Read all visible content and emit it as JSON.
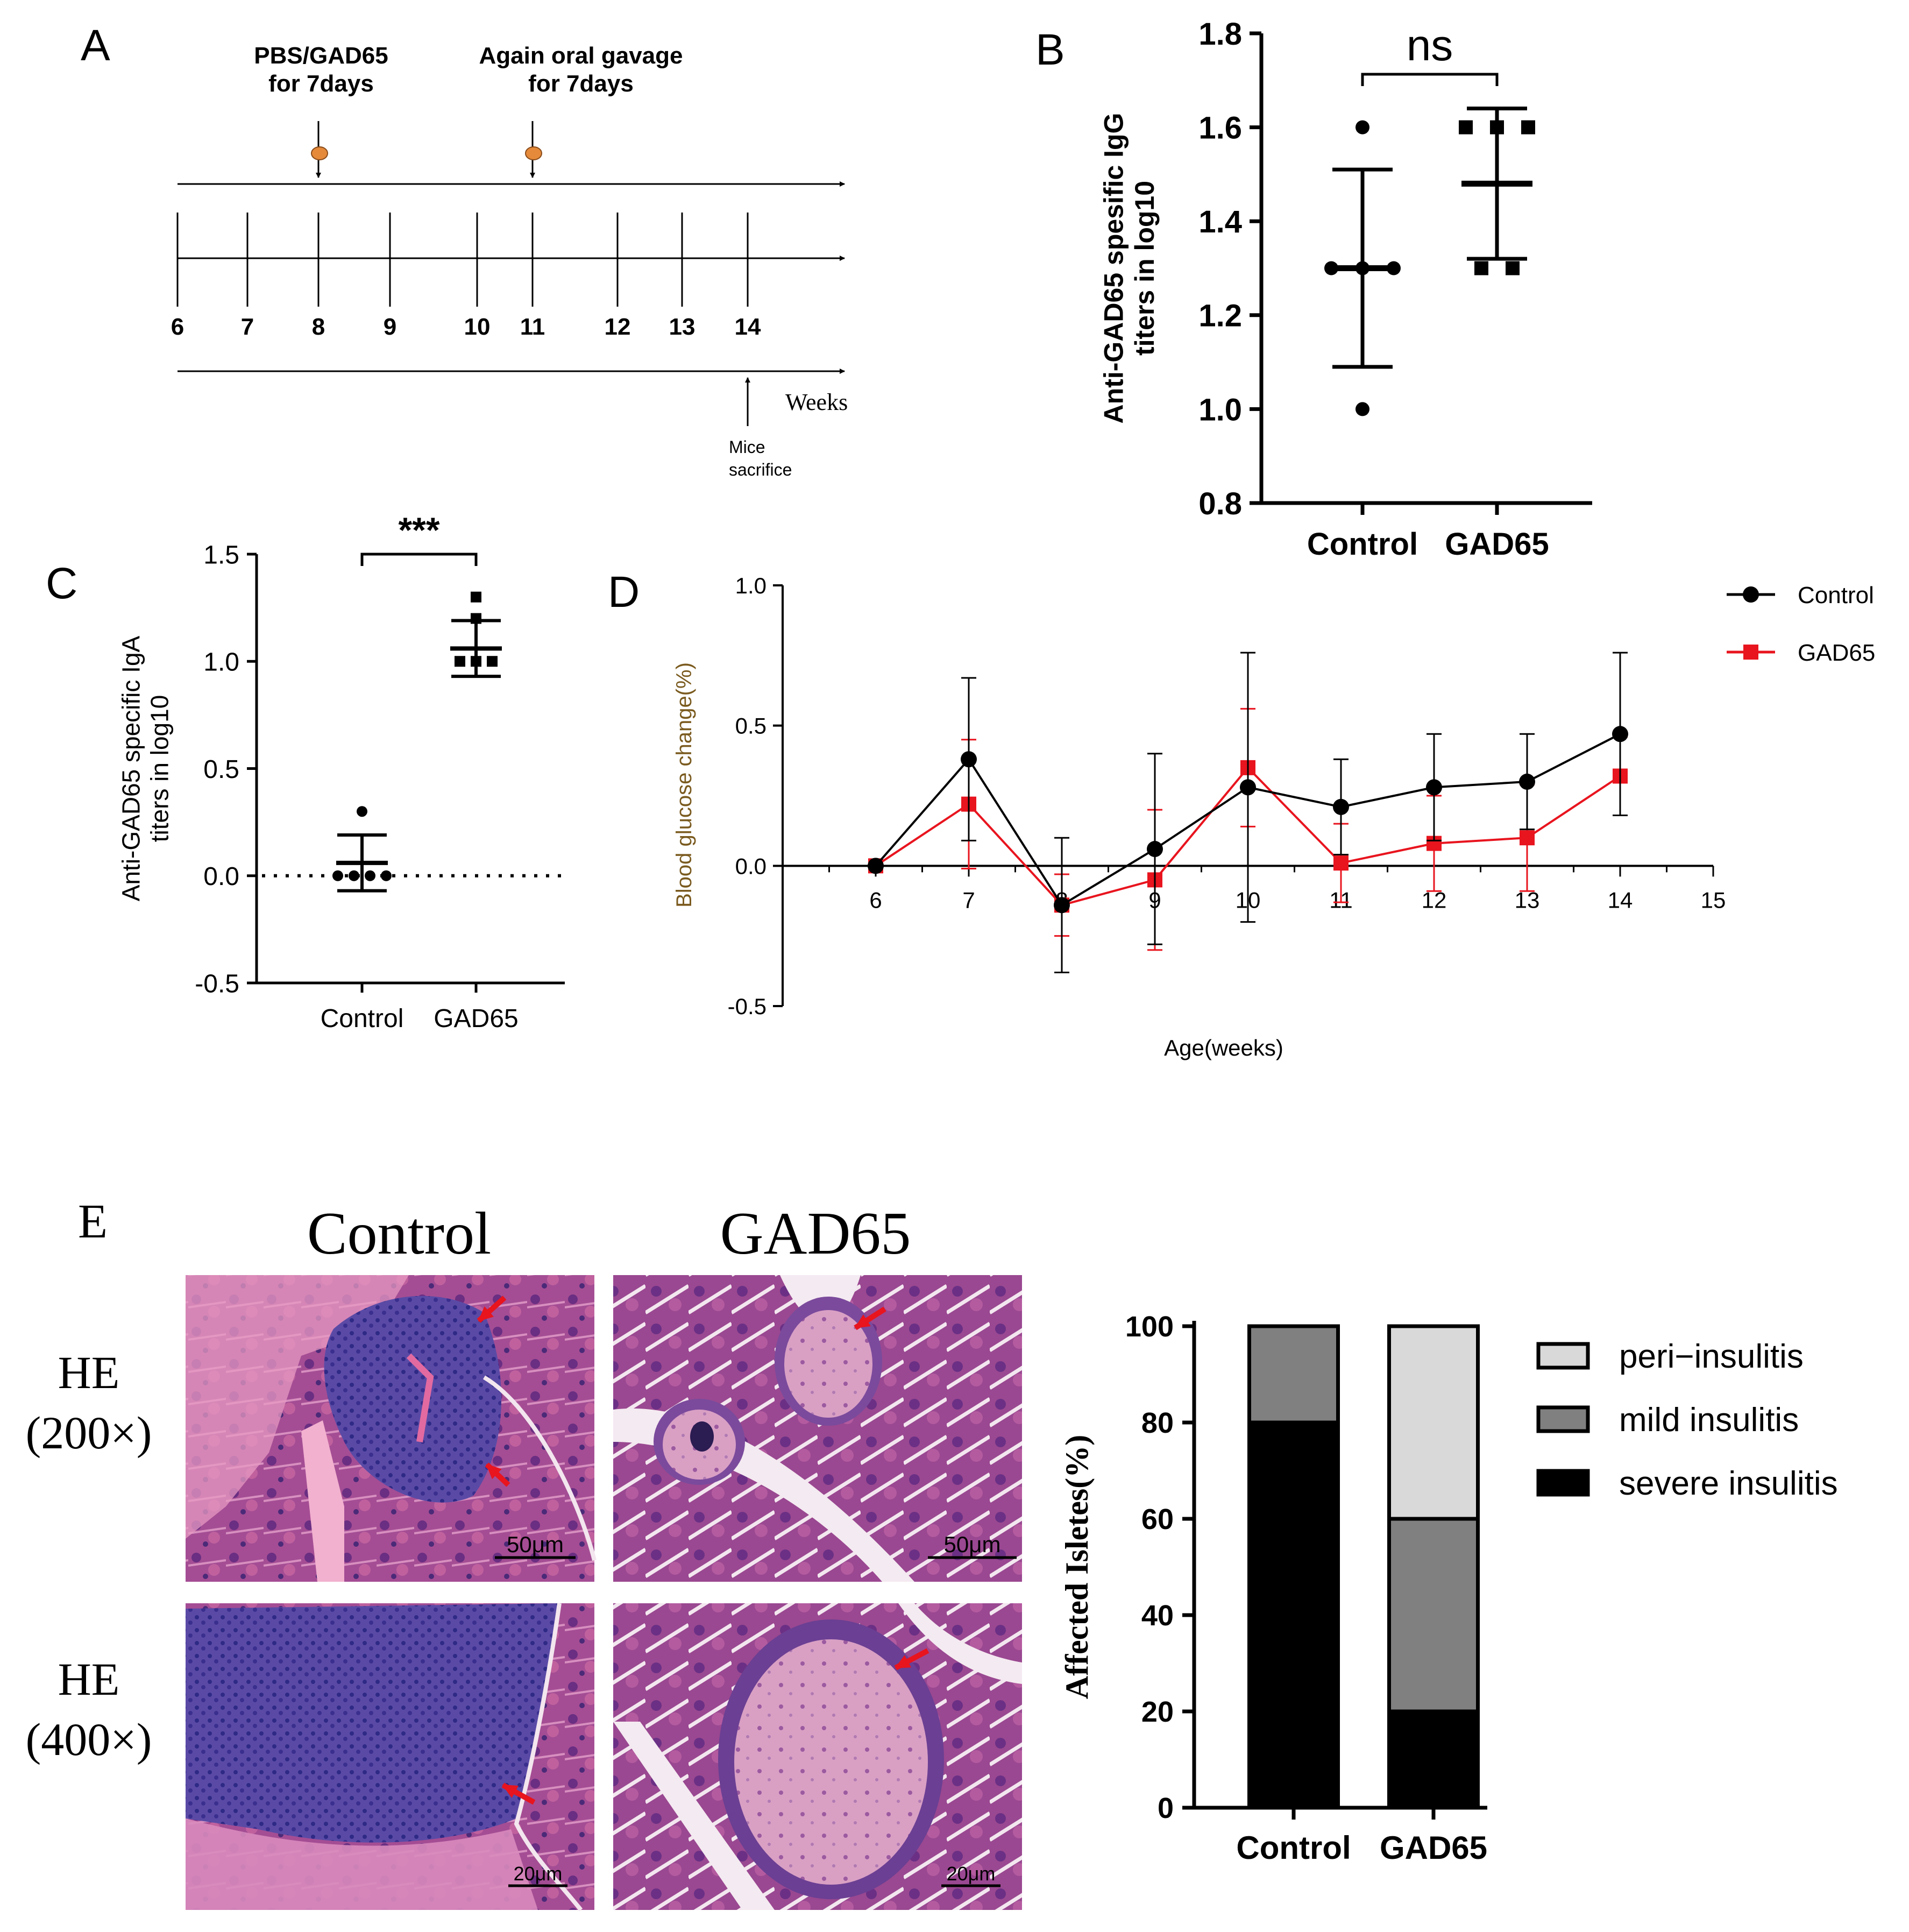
{
  "panel_labels": {
    "A": "A",
    "B": "B",
    "C": "C",
    "D": "D",
    "E": "E"
  },
  "timeline": {
    "event1": [
      "PBS/GAD65",
      "for 7days"
    ],
    "event2": [
      "Again oral gavage",
      "for 7days"
    ],
    "event1_week": 8,
    "event2_week": 11,
    "weeks": [
      "6",
      "7",
      "8",
      "9",
      "10",
      "11",
      "12",
      "13",
      "14"
    ],
    "unit": "Weeks",
    "end_event": [
      "Mice",
      "sacrifice"
    ],
    "end_event_week": 14
  },
  "chart_data": [
    {
      "id": "B",
      "type": "scatter",
      "ylabel": [
        "Anti-GAD65 spesific IgG",
        "titers in log10"
      ],
      "categories": [
        "Control",
        "GAD65"
      ],
      "ylim": [
        0.8,
        1.8
      ],
      "yticks": [
        "0.8",
        "1.0",
        "1.2",
        "1.4",
        "1.6",
        "1.8"
      ],
      "series": [
        {
          "name": "Control",
          "points": [
            1.6,
            1.3,
            1.3,
            1.3,
            1.0
          ],
          "mean": 1.3,
          "sd_low": 1.09,
          "sd_high": 1.51
        },
        {
          "name": "GAD65",
          "points": [
            1.6,
            1.6,
            1.6,
            1.3,
            1.3
          ],
          "mean": 1.48,
          "sd_low": 1.32,
          "sd_high": 1.64
        }
      ],
      "significance": "ns"
    },
    {
      "id": "C",
      "type": "scatter",
      "ylabel": [
        "Anti-GAD65 specific IgA",
        "titers in log10"
      ],
      "categories": [
        "Control",
        "GAD65"
      ],
      "ylim": [
        -0.5,
        1.5
      ],
      "yticks": [
        "-0.5",
        "0.0",
        "0.5",
        "1.0",
        "1.5"
      ],
      "series": [
        {
          "name": "Control",
          "points": [
            0.3,
            0.0,
            0.0,
            0.0,
            0.0
          ],
          "mean": 0.06,
          "sd_low": -0.07,
          "sd_high": 0.19
        },
        {
          "name": "GAD65",
          "points": [
            1.3,
            1.2,
            1.0,
            1.0,
            1.0
          ],
          "mean": 1.06,
          "sd_low": 0.93,
          "sd_high": 1.19
        }
      ],
      "significance": "***",
      "reference_line": 0.0
    },
    {
      "id": "D",
      "type": "line",
      "xlabel": "Age(weeks)",
      "ylabel": "Blood glucose change(%)",
      "xlim": [
        5,
        15
      ],
      "ylim": [
        -0.5,
        1.0
      ],
      "xticks": [
        "6",
        "7",
        "8",
        "9",
        "10",
        "11",
        "12",
        "13",
        "14",
        "15"
      ],
      "yticks": [
        "-0.5",
        "0.0",
        "0.5",
        "1.0"
      ],
      "x": [
        6,
        7,
        8,
        9,
        10,
        11,
        12,
        13,
        14
      ],
      "series": [
        {
          "name": "Control",
          "color": "#000000",
          "values": [
            0.0,
            0.38,
            -0.14,
            0.06,
            0.28,
            0.21,
            0.28,
            0.3,
            0.47
          ],
          "err": [
            0.0,
            0.29,
            0.24,
            0.34,
            0.48,
            0.17,
            0.19,
            0.17,
            0.29
          ]
        },
        {
          "name": "GAD65",
          "color": "#e8141e",
          "values": [
            0.0,
            0.22,
            -0.14,
            -0.05,
            0.35,
            0.01,
            0.08,
            0.1,
            0.32
          ],
          "err": [
            0.0,
            0.23,
            0.11,
            0.25,
            0.21,
            0.14,
            0.17,
            0.19,
            0.14
          ]
        }
      ],
      "legend_position": "top-right"
    },
    {
      "id": "E-bar",
      "type": "bar",
      "stacked": true,
      "ylabel": "Affected Isletes(%)",
      "categories": [
        "Control",
        "GAD65"
      ],
      "ylim": [
        0,
        100
      ],
      "yticks": [
        "0",
        "20",
        "40",
        "60",
        "80",
        "100"
      ],
      "series": [
        {
          "name": "severe insulitis",
          "color": "#000000",
          "values": [
            80,
            20
          ]
        },
        {
          "name": "mild insulitis",
          "color": "#808080",
          "values": [
            20,
            40
          ]
        },
        {
          "name": "peri−insulitis",
          "color": "#d9d9d9",
          "values": [
            0,
            40
          ]
        }
      ]
    }
  ],
  "histology": {
    "col_headers": [
      "Control",
      "GAD65"
    ],
    "row_labels": [
      [
        "HE",
        "(200×)"
      ],
      [
        "HE",
        "(400×)"
      ]
    ],
    "scale_bars": [
      "50μm",
      "50μm",
      "20μm",
      "20μm"
    ]
  }
}
